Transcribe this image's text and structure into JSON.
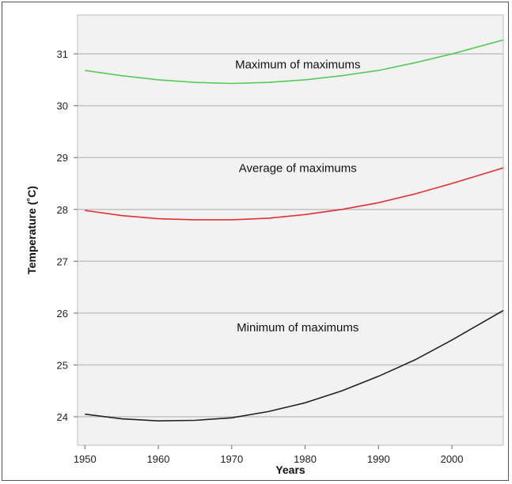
{
  "chart_data": {
    "type": "line",
    "title": "",
    "xlabel": "Years",
    "ylabel": "Temperature (˚C)",
    "xlim": [
      1949,
      2007
    ],
    "ylim": [
      23.45,
      31.75
    ],
    "x_ticks": [
      1950,
      1960,
      1970,
      1980,
      1990,
      2000
    ],
    "y_ticks": [
      24,
      25,
      26,
      27,
      28,
      29,
      30,
      31
    ],
    "grid": "horizontal",
    "legend": "none",
    "series": [
      {
        "name": "Maximum of maximums",
        "color": "#55cc55",
        "x": [
          1950,
          1955,
          1960,
          1965,
          1970,
          1975,
          1980,
          1985,
          1990,
          1995,
          2000,
          2007
        ],
        "y": [
          30.68,
          30.58,
          30.5,
          30.45,
          30.43,
          30.45,
          30.5,
          30.58,
          30.68,
          30.83,
          31.0,
          31.27
        ]
      },
      {
        "name": "Average of maximums",
        "color": "#e53030",
        "x": [
          1950,
          1955,
          1960,
          1965,
          1970,
          1975,
          1980,
          1985,
          1990,
          1995,
          2000,
          2007
        ],
        "y": [
          27.98,
          27.88,
          27.82,
          27.8,
          27.8,
          27.83,
          27.9,
          28.0,
          28.13,
          28.3,
          28.5,
          28.8
        ]
      },
      {
        "name": "Minimum of maximums",
        "color": "#222222",
        "x": [
          1950,
          1955,
          1960,
          1965,
          1970,
          1975,
          1980,
          1985,
          1990,
          1995,
          2000,
          2007
        ],
        "y": [
          24.05,
          23.96,
          23.92,
          23.93,
          23.98,
          24.1,
          24.27,
          24.5,
          24.78,
          25.1,
          25.48,
          26.05
        ]
      }
    ]
  }
}
